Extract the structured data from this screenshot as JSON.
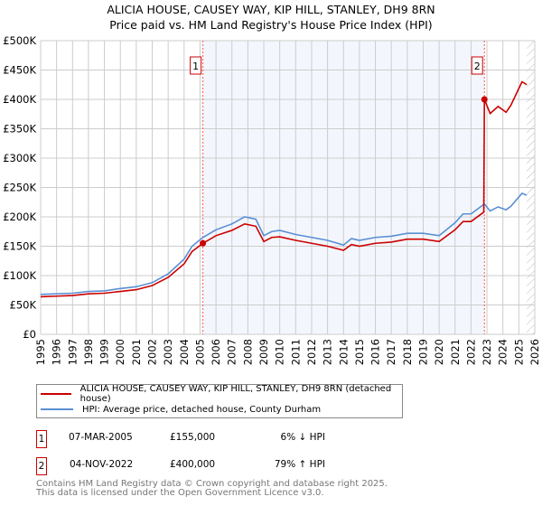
{
  "title": "ALICIA HOUSE, CAUSEY WAY, KIP HILL, STANLEY, DH9 8RN",
  "subtitle": "Price paid vs. HM Land Registry's House Price Index (HPI)",
  "chart_data": {
    "type": "line",
    "xlim": [
      1995,
      2026
    ],
    "ylim": [
      0,
      500000
    ],
    "x_ticks": [
      "1995",
      "1996",
      "1997",
      "1998",
      "1999",
      "2000",
      "2001",
      "2002",
      "2003",
      "2004",
      "2005",
      "2006",
      "2007",
      "2008",
      "2009",
      "2010",
      "2011",
      "2012",
      "2013",
      "2014",
      "2015",
      "2016",
      "2017",
      "2018",
      "2019",
      "2020",
      "2021",
      "2022",
      "2023",
      "2024",
      "2025",
      "2026"
    ],
    "y_ticks": [
      {
        "v": 0,
        "label": "£0"
      },
      {
        "v": 50000,
        "label": "£50K"
      },
      {
        "v": 100000,
        "label": "£100K"
      },
      {
        "v": 150000,
        "label": "£150K"
      },
      {
        "v": 200000,
        "label": "£200K"
      },
      {
        "v": 250000,
        "label": "£250K"
      },
      {
        "v": 300000,
        "label": "£300K"
      },
      {
        "v": 350000,
        "label": "£350K"
      },
      {
        "v": 400000,
        "label": "£400K"
      },
      {
        "v": 450000,
        "label": "£450K"
      },
      {
        "v": 500000,
        "label": "£500K"
      }
    ],
    "grid": true,
    "shaded_range": [
      2005.18,
      2022.84
    ],
    "forecast_hatch_from": 2025.5,
    "series": [
      {
        "name": "ALICIA HOUSE, CAUSEY WAY, KIP HILL, STANLEY, DH9 8RN (detached house)",
        "color": "#cc0000",
        "x": [
          1995,
          1996,
          1997,
          1998,
          1999,
          2000,
          2001,
          2002,
          2003,
          2004,
          2004.5,
          2005.18,
          2006,
          2007,
          2007.8,
          2008.5,
          2009,
          2009.5,
          2010,
          2011,
          2012,
          2013,
          2014,
          2014.5,
          2015,
          2016,
          2017,
          2018,
          2019,
          2020,
          2021,
          2021.5,
          2022,
          2022.8,
          2022.84,
          2023.2,
          2023.7,
          2024.2,
          2024.5,
          2025.2,
          2025.5
        ],
        "y": [
          64000,
          65000,
          66000,
          69000,
          70000,
          73000,
          76000,
          83000,
          97000,
          120000,
          141000,
          155000,
          168000,
          177000,
          188000,
          184000,
          158000,
          165000,
          166000,
          160000,
          155000,
          150000,
          143000,
          153000,
          150000,
          155000,
          157000,
          162000,
          162000,
          158000,
          178000,
          192000,
          192000,
          208000,
          400000,
          376000,
          388000,
          378000,
          390000,
          430000,
          425000
        ]
      },
      {
        "name": "HPI: Average price, detached house, County Durham",
        "color": "#5b8fd4",
        "x": [
          1995,
          1996,
          1997,
          1998,
          1999,
          2000,
          2001,
          2002,
          2003,
          2004,
          2004.5,
          2005.18,
          2006,
          2007,
          2007.8,
          2008.5,
          2009,
          2009.5,
          2010,
          2011,
          2012,
          2013,
          2014,
          2014.5,
          2015,
          2016,
          2017,
          2018,
          2019,
          2020,
          2021,
          2021.5,
          2022,
          2022.84,
          2023.2,
          2023.7,
          2024.2,
          2024.5,
          2025.2,
          2025.5
        ],
        "y": [
          68000,
          69000,
          70000,
          73000,
          74000,
          78000,
          81000,
          88000,
          103000,
          128000,
          150000,
          165000,
          178000,
          188000,
          200000,
          196000,
          168000,
          175000,
          177000,
          170000,
          165000,
          160000,
          152000,
          163000,
          160000,
          165000,
          167000,
          172000,
          172000,
          168000,
          190000,
          205000,
          205000,
          222000,
          210000,
          217000,
          212000,
          218000,
          240000,
          237000
        ]
      }
    ],
    "sales": [
      {
        "marker": "1",
        "x": 2005.18,
        "y": 155000
      },
      {
        "marker": "2",
        "x": 2022.84,
        "y": 400000
      }
    ]
  },
  "legend": [
    "ALICIA HOUSE, CAUSEY WAY, KIP HILL, STANLEY, DH9 8RN (detached house)",
    "HPI: Average price, detached house, County Durham"
  ],
  "transactions": [
    {
      "marker": "1",
      "date": "07-MAR-2005",
      "price": "£155,000",
      "hpi": "6% ↓ HPI"
    },
    {
      "marker": "2",
      "date": "04-NOV-2022",
      "price": "£400,000",
      "hpi": "79% ↑ HPI"
    }
  ],
  "footer": [
    "Contains HM Land Registry data © Crown copyright and database right 2025.",
    "This data is licensed under the Open Government Licence v3.0."
  ]
}
